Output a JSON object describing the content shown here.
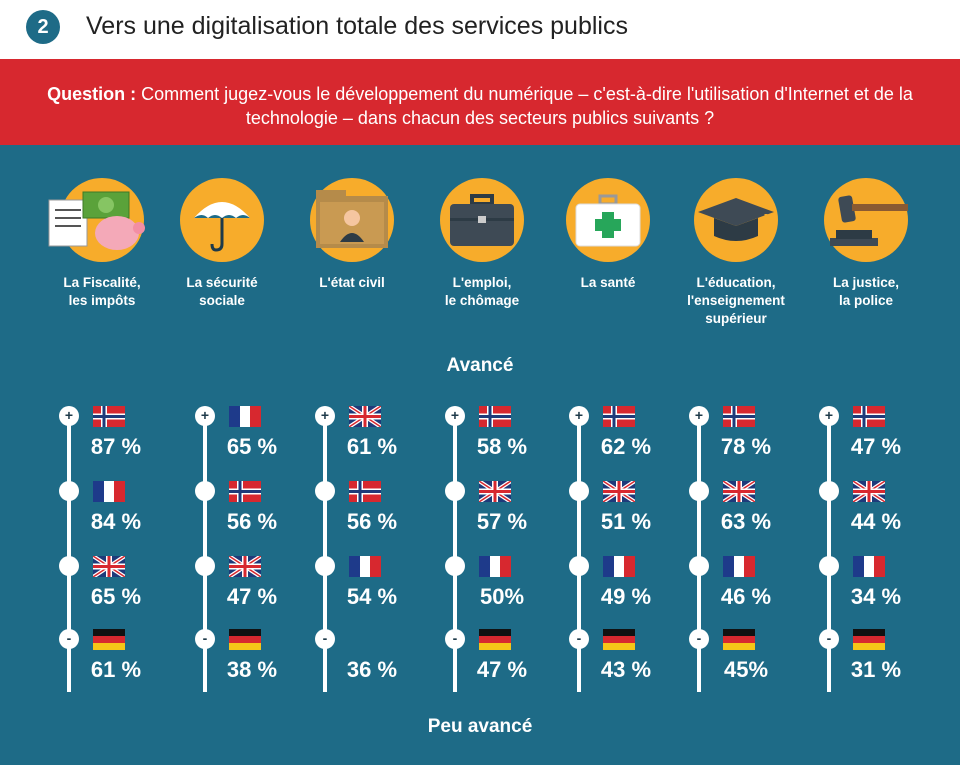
{
  "header": {
    "badge": "2",
    "title": "Vers une digitalisation totale des services publics"
  },
  "question": {
    "label": "Question :",
    "text": "Comment jugez-vous le développement du numérique – c'est-à-dire l'utilisation d'Internet et de la technologie – dans chacun des secteurs publics suivants ?"
  },
  "colors": {
    "background": "#1e6b87",
    "banner": "#d7282f",
    "icon_circle": "#f7ac2b"
  },
  "sectors": [
    {
      "label": "La Fiscalité,\nles impôts",
      "icon": "money-piggybank-icon"
    },
    {
      "label": "La sécurité\nsociale",
      "icon": "umbrella-icon"
    },
    {
      "label": "L'état civil",
      "icon": "folder-person-icon"
    },
    {
      "label": "L'emploi,\nle chômage",
      "icon": "briefcase-icon"
    },
    {
      "label": "La santé",
      "icon": "first-aid-kit-icon"
    },
    {
      "label": "L'éducation,\nl'enseignement\nsupérieur",
      "icon": "graduation-cap-icon"
    },
    {
      "label": "La justice,\nla police",
      "icon": "gavel-icon"
    }
  ],
  "axis": {
    "top": "Avancé",
    "bottom": "Peu avancé",
    "plus": "+",
    "minus": "-"
  },
  "chart_data": {
    "type": "table",
    "title": "Vers une digitalisation totale des services publics",
    "columns": [
      {
        "sector": "La Fiscalité, les impôts",
        "ranking": [
          {
            "country": "Norvège",
            "flag": "norway",
            "value": "87 %"
          },
          {
            "country": "France",
            "flag": "france",
            "value": "84 %"
          },
          {
            "country": "Royaume-Uni",
            "flag": "uk",
            "value": "65 %"
          },
          {
            "country": "Allemagne",
            "flag": "germany",
            "value": "61 %"
          }
        ]
      },
      {
        "sector": "La sécurité sociale",
        "ranking": [
          {
            "country": "France",
            "flag": "france",
            "value": "65 %"
          },
          {
            "country": "Norvège",
            "flag": "norway",
            "value": "56 %"
          },
          {
            "country": "Royaume-Uni",
            "flag": "uk",
            "value": "47 %"
          },
          {
            "country": "Allemagne",
            "flag": "germany",
            "value": "38 %"
          }
        ]
      },
      {
        "sector": "L'état civil",
        "ranking": [
          {
            "country": "Royaume-Uni",
            "flag": "uk",
            "value": "61 %"
          },
          {
            "country": "Norvège",
            "flag": "norway",
            "value": "56 %"
          },
          {
            "country": "France",
            "flag": "france",
            "value": "54 %"
          },
          {
            "country": "",
            "flag": "",
            "value": "36 %"
          }
        ]
      },
      {
        "sector": "L'emploi, le chômage",
        "ranking": [
          {
            "country": "Norvège",
            "flag": "norway",
            "value": "58 %"
          },
          {
            "country": "Royaume-Uni",
            "flag": "uk",
            "value": "57 %"
          },
          {
            "country": "France",
            "flag": "france",
            "value": "50%"
          },
          {
            "country": "Allemagne",
            "flag": "germany",
            "value": "47 %"
          }
        ]
      },
      {
        "sector": "La santé",
        "ranking": [
          {
            "country": "Norvège",
            "flag": "norway",
            "value": "62 %"
          },
          {
            "country": "Royaume-Uni",
            "flag": "uk",
            "value": "51 %"
          },
          {
            "country": "France",
            "flag": "france",
            "value": "49 %"
          },
          {
            "country": "Allemagne",
            "flag": "germany",
            "value": "43 %"
          }
        ]
      },
      {
        "sector": "L'éducation, l'enseignement supérieur",
        "ranking": [
          {
            "country": "Norvège",
            "flag": "norway",
            "value": "78 %"
          },
          {
            "country": "Royaume-Uni",
            "flag": "uk",
            "value": "63 %"
          },
          {
            "country": "France",
            "flag": "france",
            "value": "46 %"
          },
          {
            "country": "Allemagne",
            "flag": "germany",
            "value": "45%"
          }
        ]
      },
      {
        "sector": "La justice, la police",
        "ranking": [
          {
            "country": "Norvège",
            "flag": "norway",
            "value": "47 %"
          },
          {
            "country": "Royaume-Uni",
            "flag": "uk",
            "value": "44 %"
          },
          {
            "country": "France",
            "flag": "france",
            "value": "34 %"
          },
          {
            "country": "Allemagne",
            "flag": "germany",
            "value": "31 %"
          }
        ]
      }
    ]
  }
}
